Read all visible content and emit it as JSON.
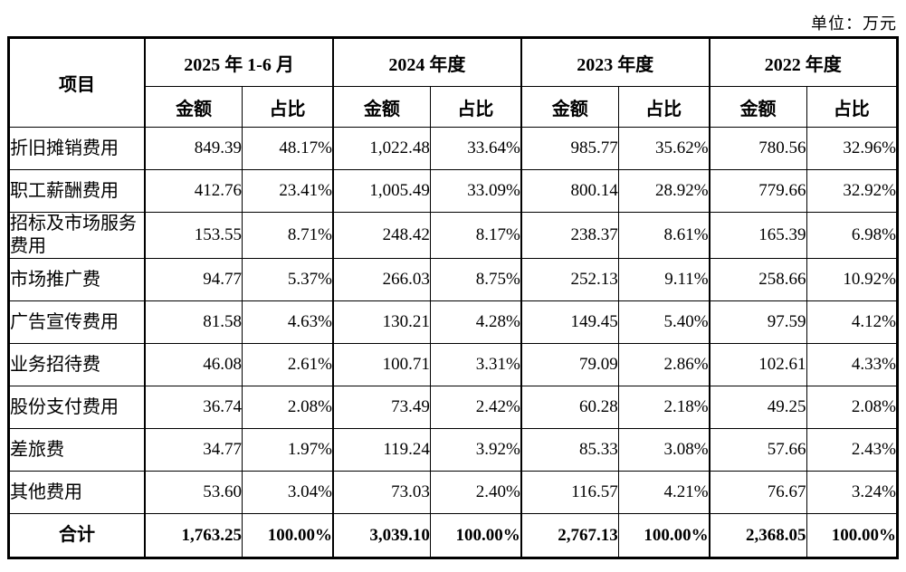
{
  "unit_label": "单位：万元",
  "table": {
    "item_header": "项目",
    "period_headers": [
      "2025 年 1-6 月",
      "2024 年度",
      "2023 年度",
      "2022 年度"
    ],
    "sub_headers": [
      "金额",
      "占比"
    ],
    "rows": [
      {
        "label": "折旧摊销费用",
        "values": [
          "849.39",
          "48.17%",
          "1,022.48",
          "33.64%",
          "985.77",
          "35.62%",
          "780.56",
          "32.96%"
        ]
      },
      {
        "label": "职工薪酬费用",
        "values": [
          "412.76",
          "23.41%",
          "1,005.49",
          "33.09%",
          "800.14",
          "28.92%",
          "779.66",
          "32.92%"
        ]
      },
      {
        "label": "招标及市场服务费用",
        "values": [
          "153.55",
          "8.71%",
          "248.42",
          "8.17%",
          "238.37",
          "8.61%",
          "165.39",
          "6.98%"
        ]
      },
      {
        "label": "市场推广费",
        "values": [
          "94.77",
          "5.37%",
          "266.03",
          "8.75%",
          "252.13",
          "9.11%",
          "258.66",
          "10.92%"
        ]
      },
      {
        "label": "广告宣传费用",
        "values": [
          "81.58",
          "4.63%",
          "130.21",
          "4.28%",
          "149.45",
          "5.40%",
          "97.59",
          "4.12%"
        ]
      },
      {
        "label": "业务招待费",
        "values": [
          "46.08",
          "2.61%",
          "100.71",
          "3.31%",
          "79.09",
          "2.86%",
          "102.61",
          "4.33%"
        ]
      },
      {
        "label": "股份支付费用",
        "values": [
          "36.74",
          "2.08%",
          "73.49",
          "2.42%",
          "60.28",
          "2.18%",
          "49.25",
          "2.08%"
        ]
      },
      {
        "label": "差旅费",
        "values": [
          "34.77",
          "1.97%",
          "119.24",
          "3.92%",
          "85.33",
          "3.08%",
          "57.66",
          "2.43%"
        ]
      },
      {
        "label": "其他费用",
        "values": [
          "53.60",
          "3.04%",
          "73.03",
          "2.40%",
          "116.57",
          "4.21%",
          "76.67",
          "3.24%"
        ]
      }
    ],
    "total_row": {
      "label": "合计",
      "values": [
        "1,763.25",
        "100.00%",
        "3,039.10",
        "100.00%",
        "2,767.13",
        "100.00%",
        "2,368.05",
        "100.00%"
      ]
    }
  }
}
